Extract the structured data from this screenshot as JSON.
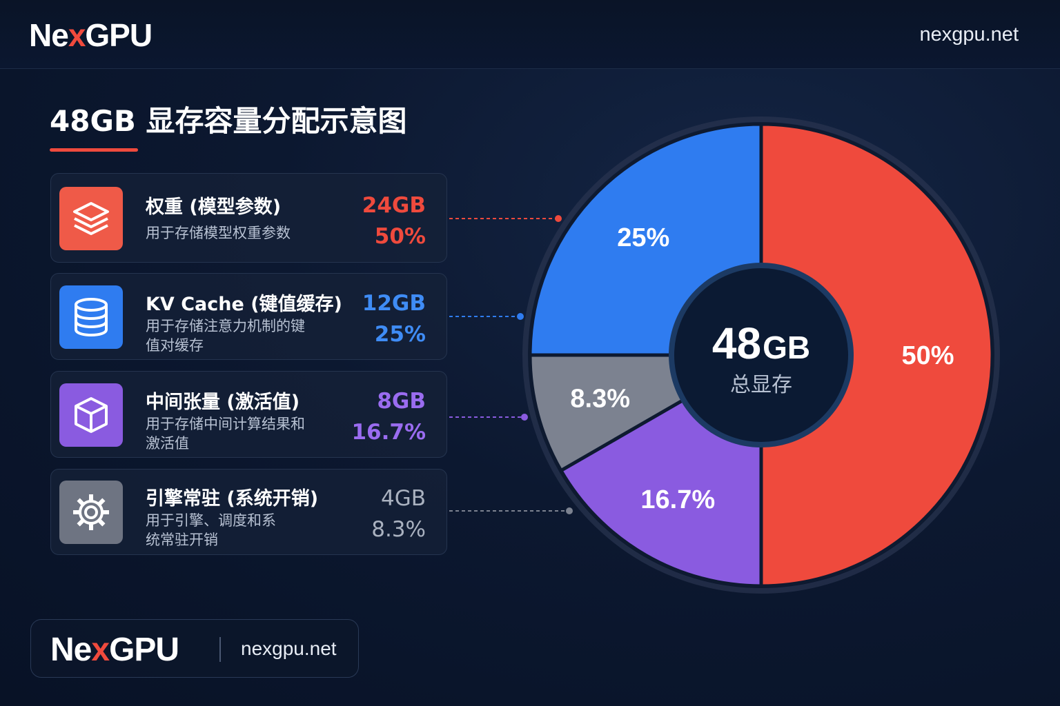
{
  "header": {
    "brand_main": "Ne",
    "brand_x": "x",
    "brand_rest": "GPU",
    "site": "nexgpu.net"
  },
  "title": "48GB 显存容量分配示意图",
  "colors": {
    "accent": "#ef4a3d",
    "weights": "#ef4a3d",
    "kv": "#2f7cf0",
    "tensor": "#8a5be0",
    "engine": "#7c8290"
  },
  "cards": [
    {
      "name": "权重 (模型参数)",
      "desc": "用于存储模型权重参数",
      "size": "24GB",
      "pct": "50%",
      "icon": "layers-icon"
    },
    {
      "name": "KV Cache (键值缓存)",
      "desc": "用于存储注意力机制的键值对缓存",
      "size": "12GB",
      "pct": "25%",
      "icon": "database-icon"
    },
    {
      "name": "中间张量 (激活值)",
      "desc": "用于存储中间计算结果和激活值",
      "size": "8GB",
      "pct": "16.7%",
      "icon": "cube-icon"
    },
    {
      "name": "引擎常驻 (系统开销)",
      "desc": "用于引擎、调度和系统常驻开销",
      "size": "4GB",
      "pct": "8.3%",
      "icon": "gear-icon"
    }
  ],
  "chart_data": {
    "type": "pie",
    "center_value": "48",
    "center_unit": "GB",
    "center_label": "总显存",
    "slices": [
      {
        "name": "权重 (模型参数)",
        "value": 24,
        "label": "50%",
        "color": "#ef4a3d"
      },
      {
        "name": "中间张量 (激活值)",
        "value": 8,
        "label": "16.7%",
        "color": "#8a5be0"
      },
      {
        "name": "引擎常驻 (系统开销)",
        "value": 4,
        "label": "8.3%",
        "color": "#7c8290"
      },
      {
        "name": "KV Cache (键值缓存)",
        "value": 12,
        "label": "25%",
        "color": "#2f7cf0"
      }
    ]
  },
  "footer": {
    "brand_main": "Ne",
    "brand_x": "x",
    "brand_rest": "GPU",
    "site": "nexgpu.net"
  }
}
